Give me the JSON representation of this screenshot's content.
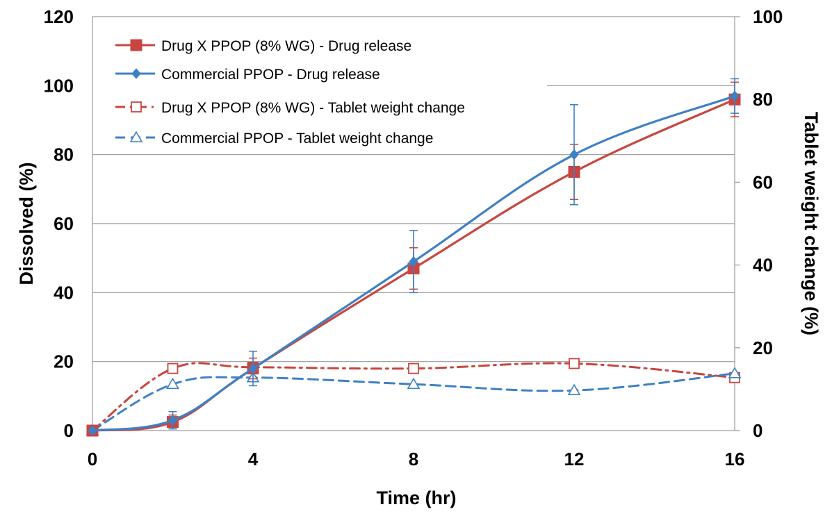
{
  "chart_data": {
    "type": "line",
    "title": "",
    "xlabel": "Time (hr)",
    "ylabel": "Dissolved (%)",
    "y2label": "Tablet weight change (%)",
    "x_ticks": [
      0,
      4,
      8,
      12,
      16
    ],
    "y_ticks": [
      0,
      20,
      40,
      60,
      80,
      100,
      120
    ],
    "y2_ticks": [
      0,
      20,
      40,
      60,
      80,
      100
    ],
    "xlim": [
      0,
      16
    ],
    "ylim": [
      0,
      120
    ],
    "y2lim": [
      0,
      100
    ],
    "grid": "horizontal",
    "legend_position": "top-left",
    "series": [
      {
        "name": "Drug X PPOP (8% WG) - Drug release",
        "axis": "left",
        "color": "#c9453f",
        "line": "solid",
        "marker": "square-filled",
        "x": [
          0,
          2,
          4,
          8,
          12,
          16
        ],
        "y": [
          0,
          2.5,
          18,
          47,
          75,
          96
        ],
        "error": [
          0,
          2,
          3,
          6,
          8,
          5
        ]
      },
      {
        "name": "Commercial PPOP - Drug release",
        "axis": "left",
        "color": "#3f80c4",
        "line": "solid",
        "marker": "diamond-filled",
        "x": [
          0,
          2,
          4,
          8,
          12,
          16
        ],
        "y": [
          0,
          3,
          18,
          49,
          80,
          97
        ],
        "error": [
          0,
          2.5,
          5,
          9,
          14.5,
          5
        ]
      },
      {
        "name": "Drug X PPOP (8% WG) - Tablet weight change",
        "axis": "right",
        "color": "#c9453f",
        "line": "dashdot",
        "marker": "square-open",
        "x": [
          0,
          2,
          4,
          8,
          12,
          16
        ],
        "y": [
          0,
          15,
          15.3,
          15,
          16.2,
          12.8
        ]
      },
      {
        "name": "Commercial PPOP - Tablet weight change",
        "axis": "right",
        "color": "#3f80c4",
        "line": "dashed",
        "marker": "triangle-open",
        "x": [
          0,
          2,
          4,
          8,
          12,
          16
        ],
        "y": [
          0,
          11.2,
          12.8,
          11.2,
          9.7,
          13.8
        ]
      }
    ]
  }
}
